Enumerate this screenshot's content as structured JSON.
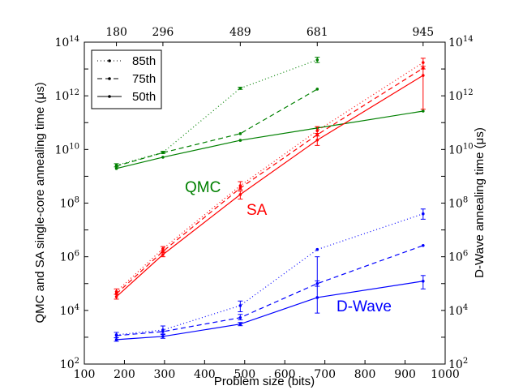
{
  "chart_data": {
    "type": "line",
    "title": "",
    "xlabel": "Problem size (bits)",
    "ylabel_left": "QMC and SA single-core annealing time (μs)",
    "ylabel_right": "D-Wave annealing time (μs)",
    "xlim": [
      100,
      1000
    ],
    "ylim_log10": [
      2,
      14
    ],
    "yscale": "log",
    "x_ticks": [
      "100",
      "200",
      "300",
      "400",
      "500",
      "600",
      "700",
      "800",
      "900",
      "1000"
    ],
    "x_tick_values": [
      100,
      200,
      300,
      400,
      500,
      600,
      700,
      800,
      900,
      1000
    ],
    "top_x_ticks": [
      "180",
      "296",
      "489",
      "681",
      "945"
    ],
    "top_x_tick_values": [
      180,
      296,
      489,
      681,
      945
    ],
    "y_tick_exponents": [
      2,
      4,
      6,
      8,
      10,
      12,
      14
    ],
    "y_tick_base": "10",
    "grid": false,
    "legend": {
      "placement": "top-left",
      "entries": [
        {
          "label": "85th",
          "style": "dotted"
        },
        {
          "label": "75th",
          "style": "dashed"
        },
        {
          "label": "50th",
          "style": "solid"
        }
      ]
    },
    "annotations": [
      {
        "text": "QMC",
        "color": "#008000"
      },
      {
        "text": "SA",
        "color": "#ff0000"
      },
      {
        "text": "D-Wave",
        "color": "#0000ff"
      }
    ],
    "x": [
      180,
      296,
      489,
      681,
      945
    ],
    "series": [
      {
        "name": "QMC 85th",
        "group": "QMC",
        "percentile": "85th",
        "style": "dotted",
        "color": "#008000",
        "x": [
          180,
          296,
          489,
          681
        ],
        "log10_y": [
          9.41,
          9.89,
          12.28,
          13.34
        ],
        "err_log10": [
          [
            9.35,
            9.47
          ],
          [
            9.85,
            9.93
          ],
          [
            12.24,
            12.32
          ],
          [
            13.24,
            13.44
          ]
        ]
      },
      {
        "name": "QMC 75th",
        "group": "QMC",
        "percentile": "75th",
        "style": "dashed",
        "color": "#008000",
        "x": [
          180,
          296,
          489,
          681
        ],
        "log10_y": [
          9.38,
          9.88,
          10.59,
          12.25
        ],
        "err_log10": [
          null,
          null,
          null,
          null
        ]
      },
      {
        "name": "QMC 50th",
        "group": "QMC",
        "percentile": "50th",
        "style": "solid",
        "color": "#008000",
        "x": [
          180,
          296,
          489,
          681,
          945
        ],
        "log10_y": [
          9.29,
          9.71,
          10.34,
          10.8,
          11.43
        ],
        "err_log10": [
          null,
          null,
          null,
          null,
          null
        ]
      },
      {
        "name": "SA 85th",
        "group": "SA",
        "percentile": "85th",
        "style": "dotted",
        "color": "#ff0000",
        "x": [
          180,
          296,
          489,
          681,
          945
        ],
        "log10_y": [
          4.7,
          6.3,
          8.65,
          10.7,
          13.24
        ],
        "err_log10": [
          [
            4.6,
            4.8
          ],
          [
            6.22,
            6.38
          ],
          [
            8.5,
            8.8
          ],
          [
            10.6,
            10.85
          ],
          [
            13.1,
            13.4
          ]
        ]
      },
      {
        "name": "SA 75th",
        "group": "SA",
        "percentile": "75th",
        "style": "dashed",
        "color": "#ff0000",
        "x": [
          180,
          296,
          489,
          681,
          945
        ],
        "log10_y": [
          4.62,
          6.2,
          8.56,
          10.55,
          13.03
        ],
        "err_log10": [
          null,
          null,
          null,
          null,
          null
        ]
      },
      {
        "name": "SA 50th",
        "group": "SA",
        "percentile": "50th",
        "style": "solid",
        "color": "#ff0000",
        "x": [
          180,
          296,
          489,
          681,
          945
        ],
        "log10_y": [
          4.51,
          6.08,
          8.32,
          10.35,
          12.76
        ],
        "err_log10": [
          [
            4.42,
            4.6
          ],
          [
            6.0,
            6.16
          ],
          [
            8.15,
            8.45
          ],
          [
            10.15,
            10.5
          ],
          [
            11.5,
            13.0
          ]
        ]
      },
      {
        "name": "D-Wave 85th",
        "group": "D-Wave",
        "percentile": "85th",
        "style": "dotted",
        "color": "#0000ff",
        "x": [
          180,
          296,
          489,
          681,
          945
        ],
        "log10_y": [
          3.09,
          3.27,
          4.18,
          6.27,
          7.6
        ],
        "err_log10": [
          [
            2.98,
            3.18
          ],
          [
            3.12,
            3.42
          ],
          [
            3.95,
            4.35
          ],
          [
            null,
            null
          ],
          [
            7.4,
            7.78
          ]
        ]
      },
      {
        "name": "D-Wave 75th",
        "group": "D-Wave",
        "percentile": "75th",
        "style": "dashed",
        "color": "#0000ff",
        "x": [
          180,
          296,
          489,
          681,
          945
        ],
        "log10_y": [
          3.06,
          3.21,
          3.73,
          5.0,
          6.42
        ],
        "err_log10": [
          null,
          null,
          [
            3.65,
            3.85
          ],
          [
            4.9,
            5.1
          ],
          null
        ]
      },
      {
        "name": "D-Wave 50th",
        "group": "D-Wave",
        "percentile": "50th",
        "style": "solid",
        "color": "#0000ff",
        "x": [
          180,
          296,
          489,
          681,
          945
        ],
        "log10_y": [
          2.91,
          3.03,
          3.49,
          4.48,
          5.09
        ],
        "err_log10": [
          [
            2.85,
            2.98
          ],
          [
            2.96,
            3.1
          ],
          [
            3.43,
            3.55
          ],
          [
            3.9,
            6.0
          ],
          [
            4.8,
            5.3
          ]
        ]
      }
    ]
  }
}
